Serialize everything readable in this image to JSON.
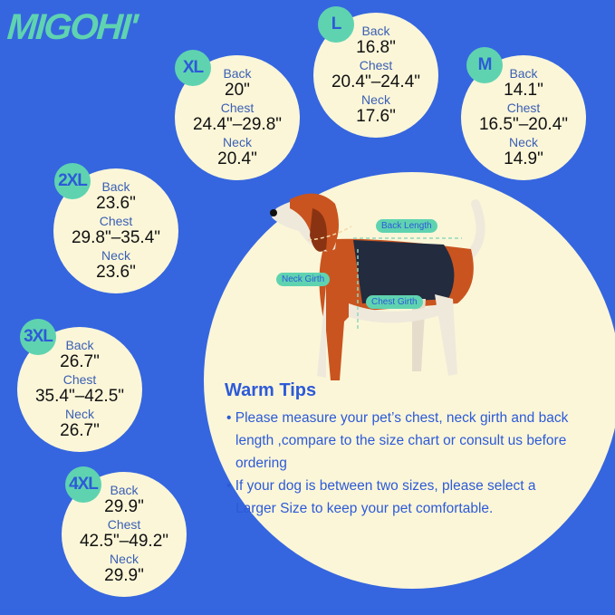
{
  "brand": "MIGOHI'",
  "colors": {
    "background": "#3566df",
    "circle": "#fbf6d8",
    "accent": "#5fd3b0",
    "text_blue": "#2d5ad8"
  },
  "sizes": [
    {
      "size": "XL",
      "back_label": "Back",
      "back": "20\"",
      "chest_label": "Chest",
      "chest": "24.4\"–29.8\"",
      "neck_label": "Neck",
      "neck": "20.4\""
    },
    {
      "size": "L",
      "back_label": "Back",
      "back": "16.8\"",
      "chest_label": "Chest",
      "chest": "20.4\"–24.4\"",
      "neck_label": "Neck",
      "neck": "17.6\""
    },
    {
      "size": "M",
      "back_label": "Back",
      "back": "14.1\"",
      "chest_label": "Chest",
      "chest": "16.5\"–20.4\"",
      "neck_label": "Neck",
      "neck": "14.9\""
    },
    {
      "size": "2XL",
      "back_label": "Back",
      "back": "23.6\"",
      "chest_label": "Chest",
      "chest": "29.8\"–35.4\"",
      "neck_label": "Neck",
      "neck": "23.6\""
    },
    {
      "size": "3XL",
      "back_label": "Back",
      "back": "26.7\"",
      "chest_label": "Chest",
      "chest": "35.4\"–42.5\"",
      "neck_label": "Neck",
      "neck": "26.7\""
    },
    {
      "size": "4XL",
      "back_label": "Back",
      "back": "29.9\"",
      "chest_label": "Chest",
      "chest": "42.5\"–49.2\"",
      "neck_label": "Neck",
      "neck": "29.9\""
    }
  ],
  "diagram": {
    "back_length": "Back Length",
    "neck_girth": "Neck Girth",
    "chest_girth": "Chest Girth"
  },
  "tips": {
    "title": "Warm Tips",
    "items": [
      "• Please measure your pet’s chest, neck girth and back length ,compare to the size chart or consult us before ordering",
      "• If your dog is between two sizes, please select a Larger Size to keep your pet comfortable."
    ]
  }
}
